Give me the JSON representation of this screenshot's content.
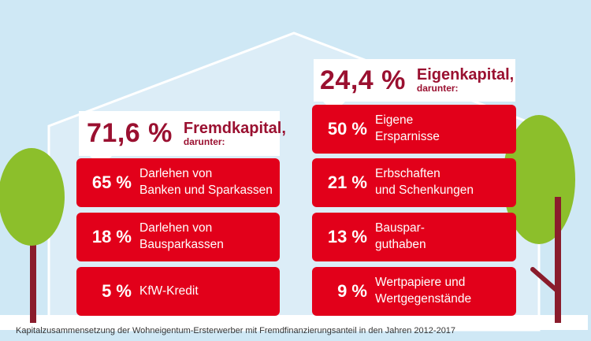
{
  "colors": {
    "sky": "#cfe8f5",
    "house": "#dcedf7",
    "card_red": "#e2001a",
    "heading_red": "#9a1030",
    "tree_green": "#8cbf2b",
    "trunk": "#8a1c2c"
  },
  "fremdkapital": {
    "percent": "71,6 %",
    "label": "Fremdkapital,",
    "sublabel": "darunter:",
    "items": [
      {
        "percent": "65 %",
        "line1": "Darlehen von",
        "line2": "Banken und Sparkassen"
      },
      {
        "percent": "18 %",
        "line1": "Darlehen von",
        "line2": "Bausparkassen"
      },
      {
        "percent": "5 %",
        "line1": "KfW-Kredit",
        "line2": ""
      }
    ]
  },
  "eigenkapital": {
    "percent": "24,4 %",
    "label": "Eigenkapital,",
    "sublabel": "darunter:",
    "items": [
      {
        "percent": "50 %",
        "line1": "Eigene",
        "line2": "Ersparnisse"
      },
      {
        "percent": "21 %",
        "line1": "Erbschaften",
        "line2": "und Schenkungen"
      },
      {
        "percent": "13 %",
        "line1": "Bauspar-",
        "line2": "guthaben"
      },
      {
        "percent": "9 %",
        "line1": "Wertpapiere und",
        "line2": "Wertgegenstände"
      }
    ]
  },
  "caption": "Kapitalzusammensetzung der Wohneigentum-Ersterwerber mit Fremdfinanzierungsanteil in den Jahren 2012-2017"
}
